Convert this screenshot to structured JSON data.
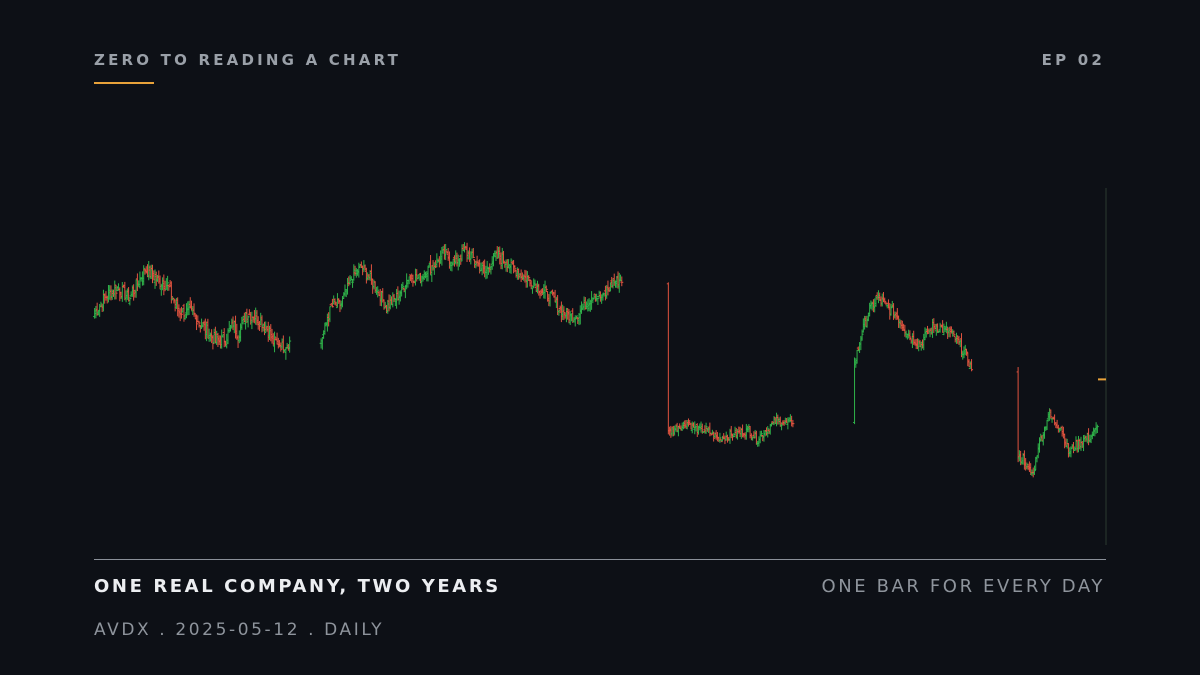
{
  "header": {
    "series_title": "ZERO TO READING A CHART",
    "episode": "EP 02"
  },
  "footer": {
    "headline": "ONE REAL COMPANY, TWO YEARS",
    "tagline": "ONE BAR FOR EVERY DAY",
    "meta": "AVDX . 2025-05-12 . DAILY"
  },
  "colors": {
    "background": "#0d1016",
    "accent": "#e8a23a",
    "up": "#2fb24a",
    "down": "#e0533f",
    "current_marker": "#e8a23a"
  },
  "chart_data": {
    "type": "ohlc",
    "title": "",
    "xlabel": "",
    "ylabel": "",
    "bars": "one per trading day over two years",
    "ylim": [
      0,
      100
    ],
    "grid": false,
    "axes_labels_shown": false,
    "segments": [
      {
        "start": 64.0,
        "anchors": [
          [
            10,
            70
          ],
          [
            18,
            72
          ],
          [
            28,
            69
          ],
          [
            40,
            78
          ],
          [
            52,
            74
          ],
          [
            58,
            73
          ],
          [
            66,
            65
          ],
          [
            78,
            64
          ],
          [
            90,
            58
          ],
          [
            96,
            55
          ],
          [
            104,
            56
          ],
          [
            110,
            61
          ],
          [
            114,
            57
          ],
          [
            120,
            64
          ],
          [
            128,
            63
          ],
          [
            136,
            60
          ],
          [
            142,
            55
          ],
          [
            150,
            54
          ],
          [
            156,
            55
          ]
        ],
        "vol": 2.4
      },
      {
        "start": 55.5,
        "anchors": [
          [
            8,
            66
          ],
          [
            16,
            67
          ],
          [
            24,
            75
          ],
          [
            32,
            79
          ],
          [
            44,
            72
          ],
          [
            52,
            66
          ],
          [
            62,
            70
          ],
          [
            70,
            76
          ],
          [
            78,
            75
          ],
          [
            84,
            78
          ],
          [
            92,
            80
          ],
          [
            98,
            83
          ],
          [
            106,
            80
          ],
          [
            114,
            84
          ],
          [
            122,
            81
          ],
          [
            130,
            77
          ],
          [
            138,
            82
          ],
          [
            146,
            81
          ],
          [
            154,
            78
          ],
          [
            160,
            76
          ],
          [
            168,
            74
          ],
          [
            176,
            71
          ],
          [
            184,
            69
          ],
          [
            190,
            65
          ],
          [
            198,
            63
          ],
          [
            204,
            64
          ],
          [
            210,
            67
          ],
          [
            216,
            70
          ],
          [
            224,
            69
          ],
          [
            232,
            74
          ],
          [
            240,
            75
          ]
        ],
        "vol": 2.3
      },
      {
        "start": 26.0,
        "anchors": [
          [
            8,
            28
          ],
          [
            16,
            29
          ],
          [
            24,
            27
          ],
          [
            30,
            27
          ],
          [
            40,
            24
          ],
          [
            46,
            25
          ],
          [
            56,
            26
          ],
          [
            64,
            27
          ],
          [
            70,
            24
          ],
          [
            78,
            27
          ],
          [
            86,
            30
          ],
          [
            94,
            29
          ],
          [
            100,
            30
          ]
        ],
        "vol": 1.6
      },
      {
        "start": 48.0,
        "anchors": [
          [
            6,
            58
          ],
          [
            12,
            65
          ],
          [
            18,
            69
          ],
          [
            26,
            66
          ],
          [
            34,
            63
          ],
          [
            40,
            59
          ],
          [
            46,
            56
          ],
          [
            52,
            54
          ],
          [
            58,
            58
          ],
          [
            64,
            60
          ],
          [
            70,
            59
          ],
          [
            76,
            58
          ],
          [
            82,
            55
          ],
          [
            88,
            51
          ],
          [
            94,
            46
          ]
        ],
        "vol": 2.0
      },
      {
        "start": 18.0,
        "anchors": [
          [
            4,
            18
          ],
          [
            8,
            14
          ],
          [
            12,
            13
          ],
          [
            16,
            22
          ],
          [
            20,
            26
          ],
          [
            24,
            32
          ],
          [
            28,
            30
          ],
          [
            34,
            28
          ],
          [
            40,
            20
          ],
          [
            46,
            22
          ],
          [
            52,
            24
          ],
          [
            58,
            25
          ],
          [
            64,
            28
          ]
        ],
        "vol": 1.8
      }
    ],
    "gaps_after_segment": [
      24,
      36,
      48,
      36,
      0
    ],
    "current_price_marker": true
  }
}
